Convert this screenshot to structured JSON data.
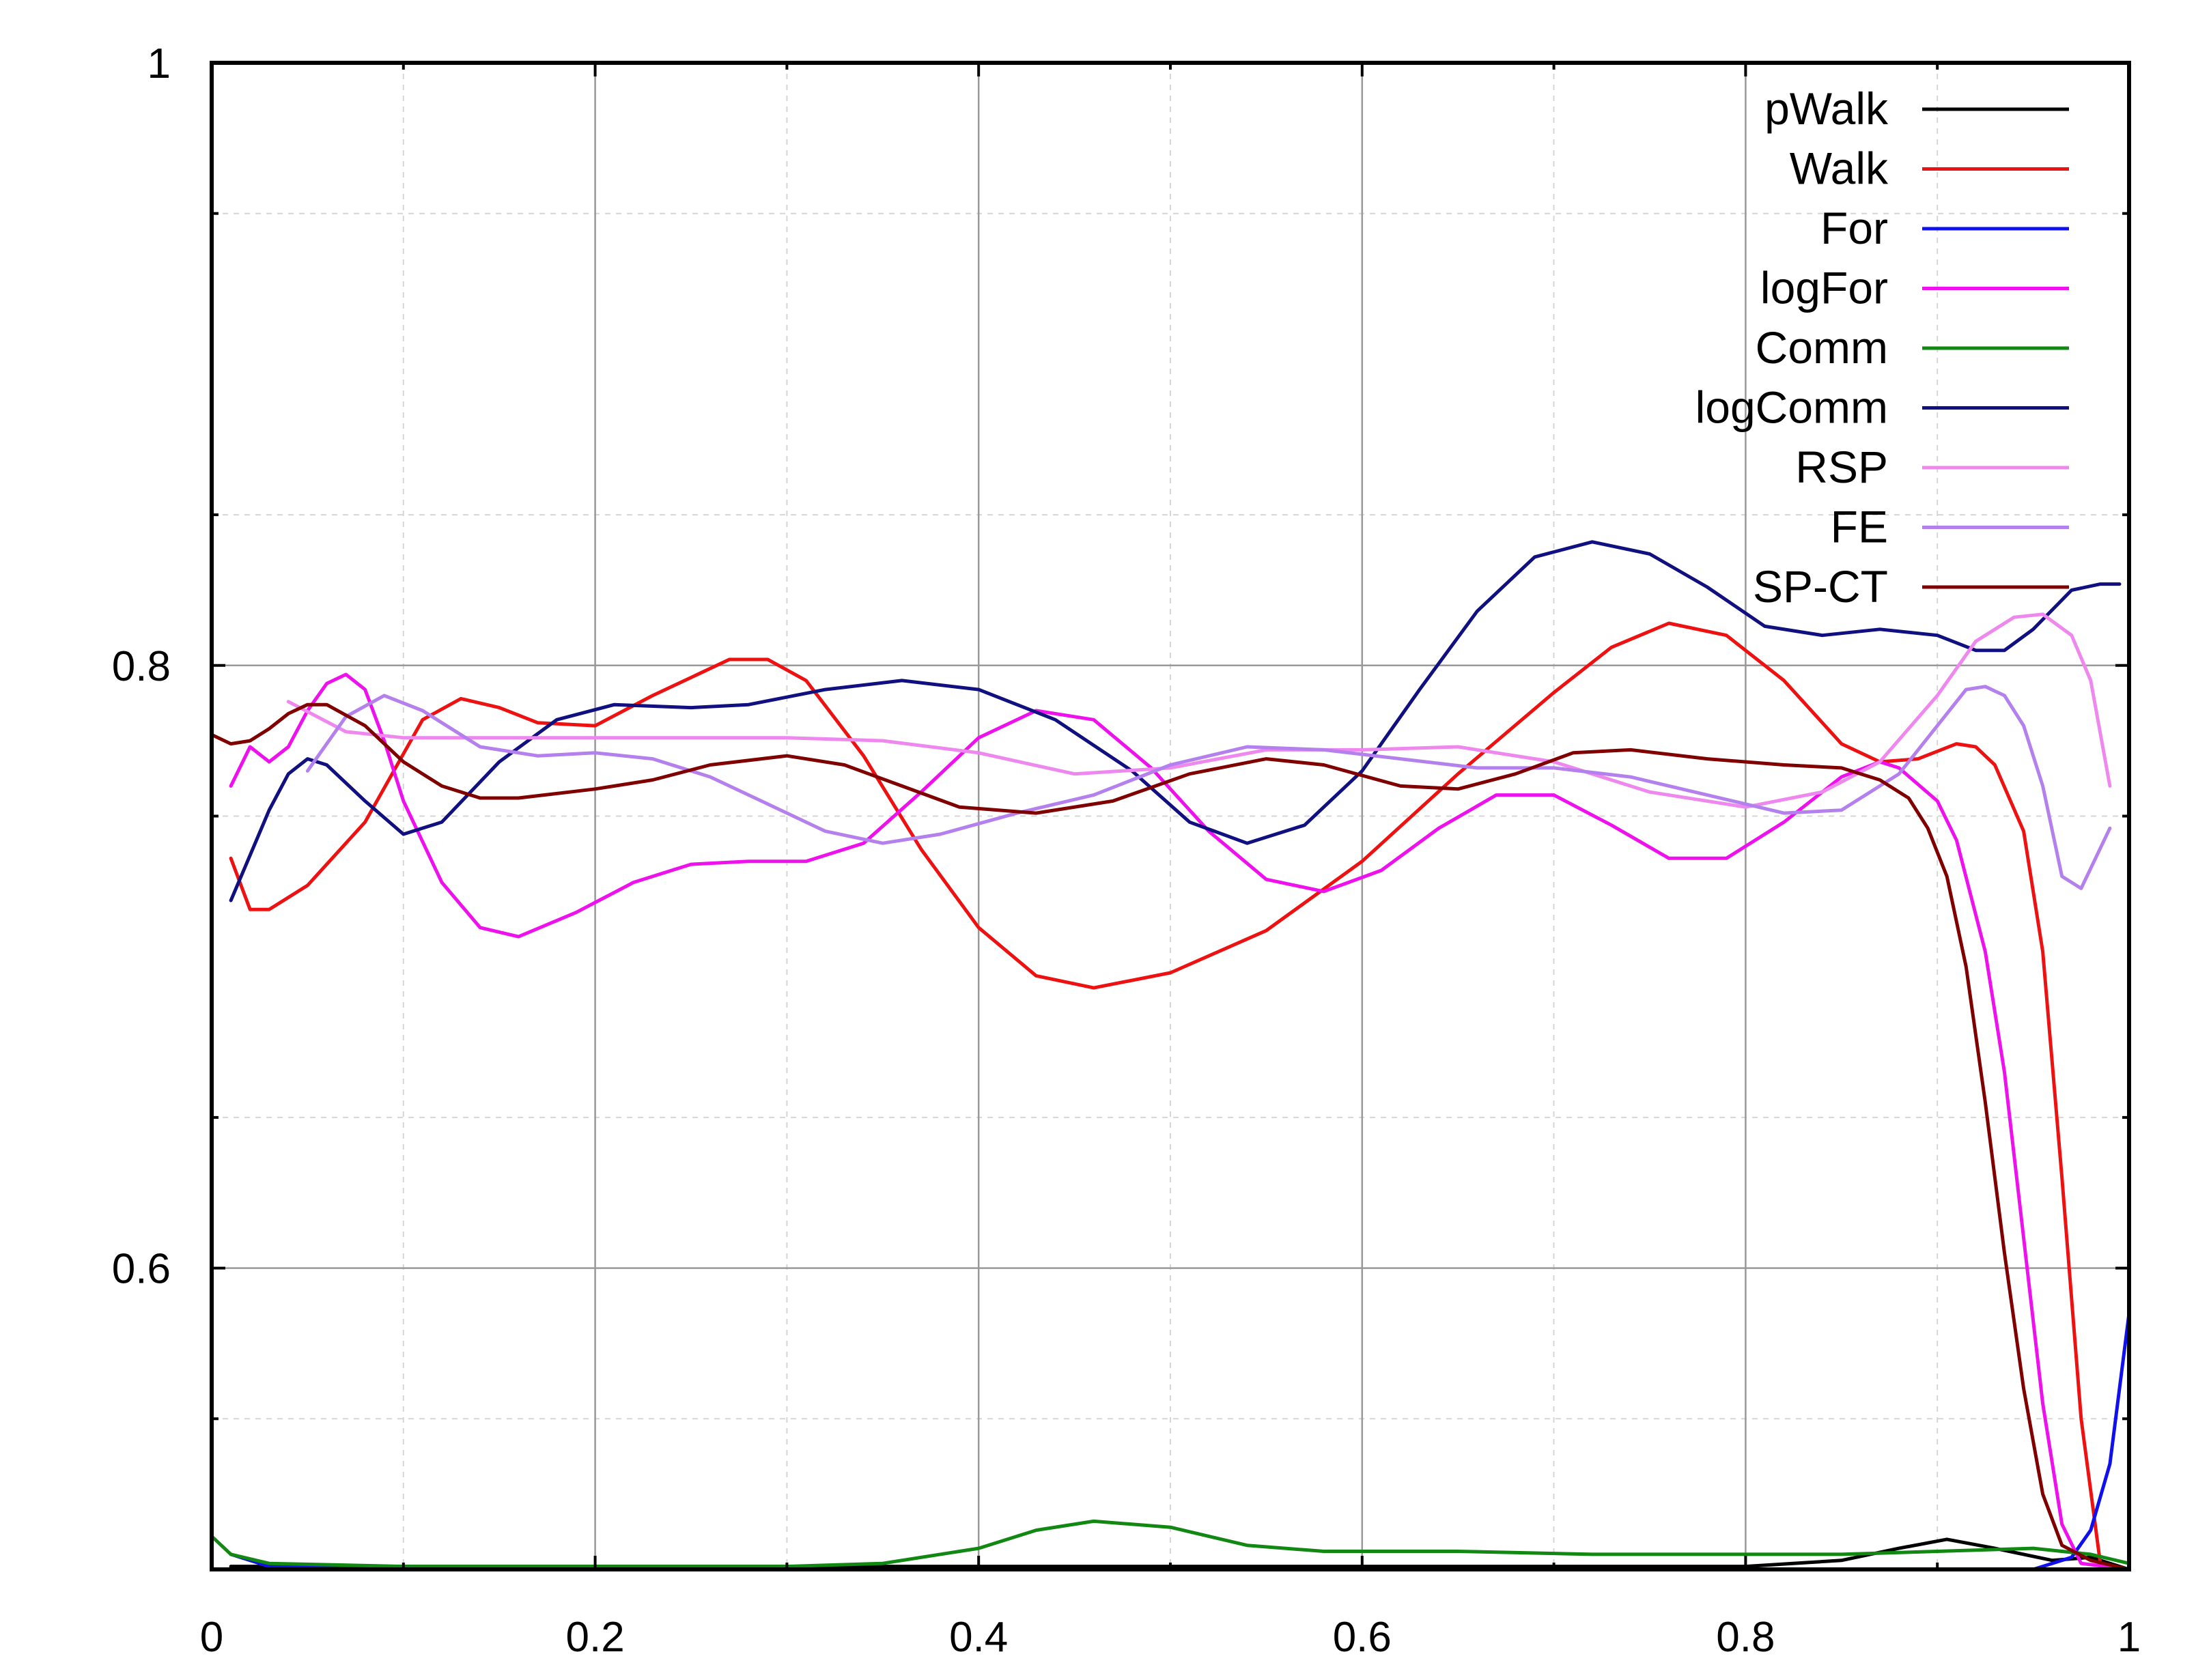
{
  "chart_data": {
    "type": "line",
    "title": "",
    "xlabel": "",
    "ylabel": "",
    "xlim": [
      0,
      1
    ],
    "ylim": [
      0.5,
      1
    ],
    "x_ticks": [
      "0",
      "0.2",
      "0.4",
      "0.6",
      "0.8",
      "1"
    ],
    "y_ticks": [
      "0.6",
      "0.8",
      "1"
    ],
    "grid": true,
    "legend_position": "top-right",
    "series": [
      {
        "name": "pWalk",
        "color": "#000000",
        "points": [
          [
            0.01,
            0.501
          ],
          [
            0.2,
            0.501
          ],
          [
            0.4,
            0.501
          ],
          [
            0.6,
            0.501
          ],
          [
            0.8,
            0.501
          ],
          [
            0.85,
            0.503
          ],
          [
            0.88,
            0.507
          ],
          [
            0.905,
            0.51
          ],
          [
            0.93,
            0.507
          ],
          [
            0.96,
            0.503
          ],
          [
            0.98,
            0.504
          ],
          [
            1.0,
            0.5
          ]
        ]
      },
      {
        "name": "Walk",
        "color": "#ee1111",
        "points": [
          [
            0.01,
            0.736
          ],
          [
            0.02,
            0.719
          ],
          [
            0.03,
            0.719
          ],
          [
            0.05,
            0.727
          ],
          [
            0.08,
            0.748
          ],
          [
            0.11,
            0.782
          ],
          [
            0.13,
            0.789
          ],
          [
            0.15,
            0.786
          ],
          [
            0.17,
            0.781
          ],
          [
            0.2,
            0.78
          ],
          [
            0.23,
            0.79
          ],
          [
            0.27,
            0.802
          ],
          [
            0.29,
            0.802
          ],
          [
            0.31,
            0.795
          ],
          [
            0.34,
            0.77
          ],
          [
            0.37,
            0.739
          ],
          [
            0.4,
            0.713
          ],
          [
            0.43,
            0.697
          ],
          [
            0.46,
            0.693
          ],
          [
            0.5,
            0.698
          ],
          [
            0.55,
            0.712
          ],
          [
            0.6,
            0.735
          ],
          [
            0.65,
            0.764
          ],
          [
            0.7,
            0.791
          ],
          [
            0.73,
            0.806
          ],
          [
            0.76,
            0.814
          ],
          [
            0.79,
            0.81
          ],
          [
            0.82,
            0.795
          ],
          [
            0.85,
            0.774
          ],
          [
            0.87,
            0.768
          ],
          [
            0.89,
            0.769
          ],
          [
            0.91,
            0.774
          ],
          [
            0.92,
            0.773
          ],
          [
            0.93,
            0.767
          ],
          [
            0.945,
            0.745
          ],
          [
            0.955,
            0.705
          ],
          [
            0.965,
            0.63
          ],
          [
            0.975,
            0.55
          ],
          [
            0.985,
            0.502
          ],
          [
            1.0,
            0.5
          ]
        ]
      },
      {
        "name": "For",
        "color": "#1010ee",
        "points": [
          [
            0.01,
            0.505
          ],
          [
            0.03,
            0.501
          ],
          [
            0.2,
            0.5
          ],
          [
            0.4,
            0.5
          ],
          [
            0.6,
            0.5
          ],
          [
            0.8,
            0.5
          ],
          [
            0.95,
            0.5
          ],
          [
            0.97,
            0.504
          ],
          [
            0.98,
            0.513
          ],
          [
            0.99,
            0.535
          ],
          [
            1.0,
            0.585
          ]
        ]
      },
      {
        "name": "logFor",
        "color": "#ee11ee",
        "points": [
          [
            0.01,
            0.76
          ],
          [
            0.02,
            0.773
          ],
          [
            0.03,
            0.768
          ],
          [
            0.04,
            0.773
          ],
          [
            0.05,
            0.785
          ],
          [
            0.06,
            0.794
          ],
          [
            0.07,
            0.797
          ],
          [
            0.08,
            0.792
          ],
          [
            0.09,
            0.775
          ],
          [
            0.1,
            0.755
          ],
          [
            0.12,
            0.728
          ],
          [
            0.14,
            0.713
          ],
          [
            0.16,
            0.71
          ],
          [
            0.19,
            0.718
          ],
          [
            0.22,
            0.728
          ],
          [
            0.25,
            0.734
          ],
          [
            0.28,
            0.735
          ],
          [
            0.31,
            0.735
          ],
          [
            0.34,
            0.741
          ],
          [
            0.37,
            0.758
          ],
          [
            0.4,
            0.776
          ],
          [
            0.43,
            0.785
          ],
          [
            0.46,
            0.782
          ],
          [
            0.49,
            0.766
          ],
          [
            0.52,
            0.745
          ],
          [
            0.55,
            0.729
          ],
          [
            0.58,
            0.725
          ],
          [
            0.61,
            0.732
          ],
          [
            0.64,
            0.746
          ],
          [
            0.67,
            0.757
          ],
          [
            0.7,
            0.757
          ],
          [
            0.73,
            0.747
          ],
          [
            0.76,
            0.736
          ],
          [
            0.79,
            0.736
          ],
          [
            0.82,
            0.748
          ],
          [
            0.85,
            0.763
          ],
          [
            0.87,
            0.768
          ],
          [
            0.88,
            0.766
          ],
          [
            0.9,
            0.755
          ],
          [
            0.91,
            0.742
          ],
          [
            0.925,
            0.705
          ],
          [
            0.935,
            0.665
          ],
          [
            0.945,
            0.61
          ],
          [
            0.955,
            0.555
          ],
          [
            0.965,
            0.515
          ],
          [
            0.975,
            0.502
          ],
          [
            1.0,
            0.5
          ]
        ]
      },
      {
        "name": "Comm",
        "color": "#118811",
        "points": [
          [
            0.0,
            0.511
          ],
          [
            0.01,
            0.505
          ],
          [
            0.03,
            0.502
          ],
          [
            0.1,
            0.501
          ],
          [
            0.2,
            0.501
          ],
          [
            0.3,
            0.501
          ],
          [
            0.35,
            0.502
          ],
          [
            0.4,
            0.507
          ],
          [
            0.43,
            0.513
          ],
          [
            0.46,
            0.516
          ],
          [
            0.5,
            0.514
          ],
          [
            0.54,
            0.508
          ],
          [
            0.58,
            0.506
          ],
          [
            0.65,
            0.506
          ],
          [
            0.72,
            0.505
          ],
          [
            0.8,
            0.505
          ],
          [
            0.85,
            0.505
          ],
          [
            0.9,
            0.506
          ],
          [
            0.95,
            0.507
          ],
          [
            0.98,
            0.505
          ],
          [
            1.0,
            0.502
          ]
        ]
      },
      {
        "name": "logComm",
        "color": "#101080",
        "points": [
          [
            0.01,
            0.722
          ],
          [
            0.02,
            0.737
          ],
          [
            0.03,
            0.752
          ],
          [
            0.04,
            0.764
          ],
          [
            0.05,
            0.769
          ],
          [
            0.06,
            0.767
          ],
          [
            0.08,
            0.755
          ],
          [
            0.1,
            0.744
          ],
          [
            0.12,
            0.748
          ],
          [
            0.15,
            0.768
          ],
          [
            0.18,
            0.782
          ],
          [
            0.21,
            0.787
          ],
          [
            0.25,
            0.786
          ],
          [
            0.28,
            0.787
          ],
          [
            0.32,
            0.792
          ],
          [
            0.36,
            0.795
          ],
          [
            0.4,
            0.792
          ],
          [
            0.44,
            0.782
          ],
          [
            0.48,
            0.765
          ],
          [
            0.51,
            0.748
          ],
          [
            0.54,
            0.741
          ],
          [
            0.57,
            0.747
          ],
          [
            0.6,
            0.765
          ],
          [
            0.63,
            0.792
          ],
          [
            0.66,
            0.818
          ],
          [
            0.69,
            0.836
          ],
          [
            0.72,
            0.841
          ],
          [
            0.75,
            0.837
          ],
          [
            0.78,
            0.826
          ],
          [
            0.81,
            0.813
          ],
          [
            0.84,
            0.81
          ],
          [
            0.87,
            0.812
          ],
          [
            0.9,
            0.81
          ],
          [
            0.92,
            0.805
          ],
          [
            0.935,
            0.805
          ],
          [
            0.95,
            0.812
          ],
          [
            0.97,
            0.825
          ],
          [
            0.985,
            0.827
          ],
          [
            0.995,
            0.827
          ]
        ]
      },
      {
        "name": "RSP",
        "color": "#ee88ee",
        "points": [
          [
            0.04,
            0.788
          ],
          [
            0.07,
            0.778
          ],
          [
            0.1,
            0.776
          ],
          [
            0.15,
            0.776
          ],
          [
            0.2,
            0.776
          ],
          [
            0.3,
            0.776
          ],
          [
            0.35,
            0.775
          ],
          [
            0.4,
            0.771
          ],
          [
            0.45,
            0.764
          ],
          [
            0.5,
            0.766
          ],
          [
            0.55,
            0.772
          ],
          [
            0.6,
            0.772
          ],
          [
            0.65,
            0.773
          ],
          [
            0.7,
            0.768
          ],
          [
            0.75,
            0.758
          ],
          [
            0.8,
            0.753
          ],
          [
            0.84,
            0.758
          ],
          [
            0.87,
            0.768
          ],
          [
            0.9,
            0.79
          ],
          [
            0.92,
            0.808
          ],
          [
            0.94,
            0.816
          ],
          [
            0.955,
            0.817
          ],
          [
            0.97,
            0.81
          ],
          [
            0.98,
            0.795
          ],
          [
            0.99,
            0.76
          ]
        ]
      },
      {
        "name": "FE",
        "color": "#b480ee",
        "points": [
          [
            0.05,
            0.765
          ],
          [
            0.07,
            0.783
          ],
          [
            0.09,
            0.79
          ],
          [
            0.11,
            0.785
          ],
          [
            0.14,
            0.773
          ],
          [
            0.17,
            0.77
          ],
          [
            0.2,
            0.771
          ],
          [
            0.23,
            0.769
          ],
          [
            0.26,
            0.763
          ],
          [
            0.29,
            0.754
          ],
          [
            0.32,
            0.745
          ],
          [
            0.35,
            0.741
          ],
          [
            0.38,
            0.744
          ],
          [
            0.42,
            0.751
          ],
          [
            0.46,
            0.757
          ],
          [
            0.5,
            0.767
          ],
          [
            0.54,
            0.773
          ],
          [
            0.58,
            0.772
          ],
          [
            0.62,
            0.769
          ],
          [
            0.66,
            0.766
          ],
          [
            0.7,
            0.766
          ],
          [
            0.74,
            0.763
          ],
          [
            0.78,
            0.757
          ],
          [
            0.82,
            0.751
          ],
          [
            0.85,
            0.752
          ],
          [
            0.88,
            0.764
          ],
          [
            0.9,
            0.78
          ],
          [
            0.915,
            0.792
          ],
          [
            0.925,
            0.793
          ],
          [
            0.935,
            0.79
          ],
          [
            0.945,
            0.78
          ],
          [
            0.955,
            0.76
          ],
          [
            0.965,
            0.73
          ],
          [
            0.975,
            0.726
          ],
          [
            0.99,
            0.746
          ]
        ]
      },
      {
        "name": "SP-CT",
        "color": "#800000",
        "points": [
          [
            0.0,
            0.777
          ],
          [
            0.01,
            0.774
          ],
          [
            0.02,
            0.775
          ],
          [
            0.03,
            0.779
          ],
          [
            0.04,
            0.784
          ],
          [
            0.05,
            0.787
          ],
          [
            0.06,
            0.787
          ],
          [
            0.08,
            0.78
          ],
          [
            0.1,
            0.768
          ],
          [
            0.12,
            0.76
          ],
          [
            0.14,
            0.756
          ],
          [
            0.16,
            0.756
          ],
          [
            0.2,
            0.759
          ],
          [
            0.23,
            0.762
          ],
          [
            0.26,
            0.767
          ],
          [
            0.3,
            0.77
          ],
          [
            0.33,
            0.767
          ],
          [
            0.36,
            0.76
          ],
          [
            0.39,
            0.753
          ],
          [
            0.43,
            0.751
          ],
          [
            0.47,
            0.755
          ],
          [
            0.51,
            0.764
          ],
          [
            0.55,
            0.769
          ],
          [
            0.58,
            0.767
          ],
          [
            0.62,
            0.76
          ],
          [
            0.65,
            0.759
          ],
          [
            0.68,
            0.764
          ],
          [
            0.71,
            0.771
          ],
          [
            0.74,
            0.772
          ],
          [
            0.78,
            0.769
          ],
          [
            0.82,
            0.767
          ],
          [
            0.85,
            0.766
          ],
          [
            0.87,
            0.762
          ],
          [
            0.885,
            0.756
          ],
          [
            0.895,
            0.746
          ],
          [
            0.905,
            0.73
          ],
          [
            0.915,
            0.7
          ],
          [
            0.925,
            0.655
          ],
          [
            0.935,
            0.605
          ],
          [
            0.945,
            0.56
          ],
          [
            0.955,
            0.525
          ],
          [
            0.965,
            0.508
          ],
          [
            0.98,
            0.503
          ],
          [
            1.0,
            0.5
          ]
        ]
      }
    ]
  }
}
